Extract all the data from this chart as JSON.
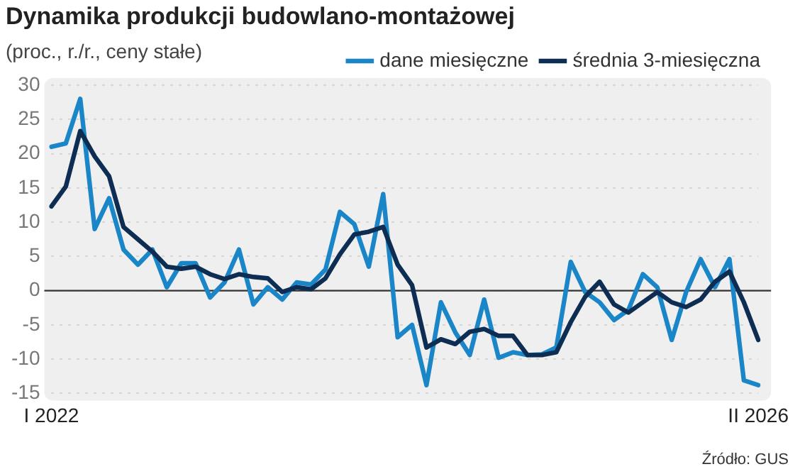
{
  "chart_data": {
    "type": "line",
    "title": "Dynamika produkcji budowlano-montażowej",
    "subtitle": "(proc., r./r., ceny stałe)",
    "categories": [
      "I 2022",
      null,
      null,
      null,
      null,
      null,
      null,
      null,
      null,
      null,
      null,
      null,
      null,
      null,
      null,
      null,
      null,
      null,
      null,
      null,
      null,
      null,
      null,
      null,
      null,
      null,
      null,
      null,
      null,
      null,
      null,
      null,
      null,
      null,
      null,
      null,
      null,
      null,
      null,
      null,
      null,
      null,
      null,
      null,
      null,
      null,
      null,
      null,
      null,
      "II 2026"
    ],
    "series": [
      {
        "name": "dane miesięczne",
        "color": "#1a86c8",
        "values": [
          21,
          21.5,
          28,
          9,
          13.5,
          6,
          3.8,
          6,
          0.5,
          4,
          4,
          -1,
          1.2,
          6,
          -2,
          0.5,
          -1.3,
          1.2,
          0.9,
          3.1,
          11.5,
          9.7,
          3.5,
          14.1,
          -6.8,
          -5,
          -13.8,
          -1.7,
          -6.1,
          -9.4,
          -1.3,
          -9.8,
          -9,
          -9.4,
          -9.3,
          -8.3,
          4.2,
          -0.2,
          -1.7,
          -4.3,
          -2.8,
          2.4,
          0.5,
          -7.2,
          -0.2,
          4.6,
          0.5,
          4.6,
          -13.1,
          -13.8
        ]
      },
      {
        "name": "średnia 3-miesięczna",
        "color": "#0e2d52",
        "values": [
          12.3,
          15.2,
          23.3,
          19.6,
          16.7,
          9.3,
          7.5,
          5.7,
          3.5,
          3.2,
          3.5,
          2.4,
          1.7,
          2.4,
          2,
          1.8,
          -0.2,
          0.5,
          0.2,
          1.8,
          5.3,
          8.2,
          8.6,
          9.3,
          3.8,
          0.8,
          -8.3,
          -7.1,
          -7.8,
          -6,
          -5.6,
          -6.6,
          -6.6,
          -9.4,
          -9.4,
          -9,
          -4.6,
          -0.9,
          1.3,
          -2,
          -3.2,
          -1.7,
          -0.2,
          -1.7,
          -2.4,
          -1.3,
          1.3,
          2.8,
          -1.7,
          -7.2
        ]
      }
    ],
    "ylim": [
      -15,
      30
    ],
    "yticks": [
      -15,
      -10,
      -5,
      0,
      5,
      10,
      15,
      20,
      25,
      30
    ],
    "ref_lines": [
      {
        "axis": "y",
        "value": 0,
        "color": "#333333"
      }
    ],
    "annotations": [
      "Źródło: GUS"
    ],
    "grid": "y",
    "legend": "top right",
    "marker": "none",
    "line_style": "solid"
  }
}
